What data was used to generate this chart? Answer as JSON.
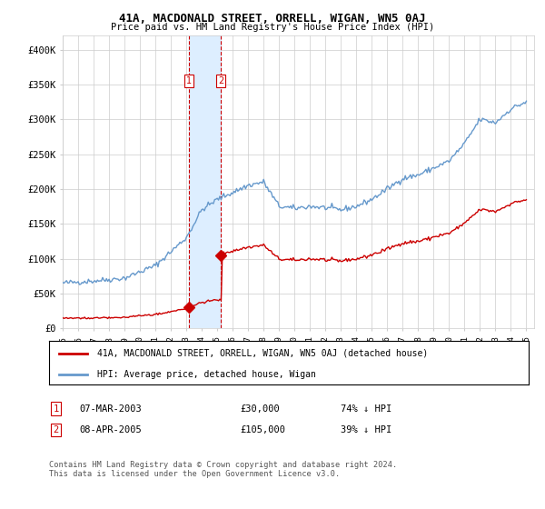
{
  "title1": "41A, MACDONALD STREET, ORRELL, WIGAN, WN5 0AJ",
  "title2": "Price paid vs. HM Land Registry's House Price Index (HPI)",
  "legend_line1": "41A, MACDONALD STREET, ORRELL, WIGAN, WN5 0AJ (detached house)",
  "legend_line2": "HPI: Average price, detached house, Wigan",
  "transaction1_label": "1",
  "transaction1_date": "07-MAR-2003",
  "transaction1_price": "£30,000",
  "transaction1_hpi": "74% ↓ HPI",
  "transaction2_label": "2",
  "transaction2_date": "08-APR-2005",
  "transaction2_price": "£105,000",
  "transaction2_hpi": "39% ↓ HPI",
  "footnote": "Contains HM Land Registry data © Crown copyright and database right 2024.\nThis data is licensed under the Open Government Licence v3.0.",
  "hpi_color": "#6699cc",
  "price_color": "#cc0000",
  "marker_color": "#cc0000",
  "vline_color": "#cc0000",
  "shade_color": "#ddeeff",
  "ylim": [
    0,
    420000
  ],
  "yticks": [
    0,
    50000,
    100000,
    150000,
    200000,
    250000,
    300000,
    350000,
    400000
  ],
  "ytick_labels": [
    "£0",
    "£50K",
    "£100K",
    "£150K",
    "£200K",
    "£250K",
    "£300K",
    "£350K",
    "£400K"
  ]
}
